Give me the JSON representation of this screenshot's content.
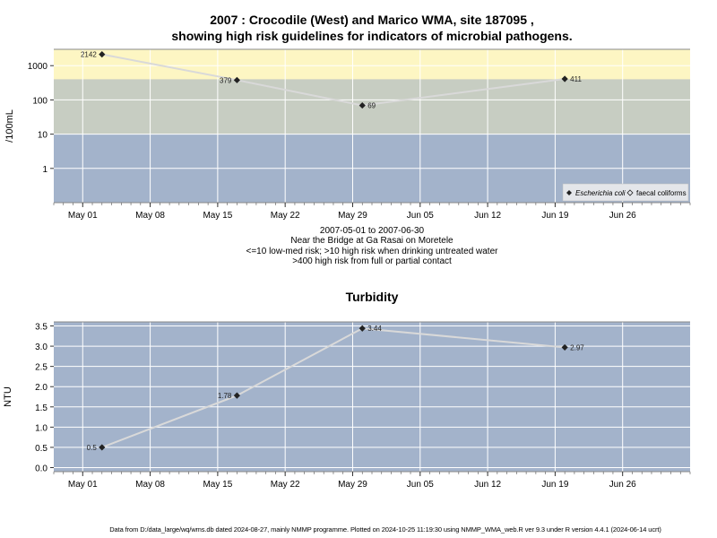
{
  "title_line1": "2007 : Crocodile (West) and Marico WMA, site 187095 ,",
  "title_line2": "showing high risk guidelines for indicators of microbial pathogens.",
  "caption": {
    "line1": "2007-05-01 to 2007-06-30",
    "line2": "Near the Bridge at Ga Rasai on Moretele",
    "line3": "<=10 low-med risk; >10 high risk when drinking untreated water",
    "line4": ">400 high risk from full or partial contact"
  },
  "footer": "Data from D:/data_large/wq/wms.db dated 2024-08-27, mainly NMMP programme. Plotted on 2024-10-25 11:19:30 using NMMP_WMA_web.R ver 9.3 under R version 4.4.1 (2024-06-14 ucrt)",
  "colors": {
    "panel_bg": "#a3b3cb",
    "band_high": "#fdf6c3",
    "band_mid": "#c7cdc2",
    "grid": "#ffffff",
    "line": "#d9d9d9",
    "point": "#222222"
  },
  "chart_data": [
    {
      "type": "line",
      "title": "",
      "ylabel": "/100mL",
      "xlabel": "",
      "x_tick_labels": [
        "May 01",
        "May 08",
        "May 15",
        "May 22",
        "May 29",
        "Jun 05",
        "Jun 12",
        "Jun 19",
        "Jun 26"
      ],
      "x_tick_dates": [
        "2007-05-01",
        "2007-05-08",
        "2007-05-15",
        "2007-05-22",
        "2007-05-29",
        "2007-06-05",
        "2007-06-12",
        "2007-06-19",
        "2007-06-26"
      ],
      "y_scale": "log",
      "y_tick_labels": [
        "1",
        "10",
        "100",
        "1000"
      ],
      "y_tick_values": [
        1,
        10,
        100,
        1000
      ],
      "ylim": [
        0.1,
        3000
      ],
      "bands": [
        {
          "from": 0.1,
          "to": 10,
          "color": "#a3b3cb"
        },
        {
          "from": 10,
          "to": 400,
          "color": "#c7cdc2"
        },
        {
          "from": 400,
          "to": 3000,
          "color": "#fdf6c3"
        }
      ],
      "series": [
        {
          "name": "Escherichia coli",
          "marker": "filled-diamond",
          "x": [
            "2007-05-03",
            "2007-05-17",
            "2007-05-30",
            "2007-06-20"
          ],
          "values": [
            2142,
            379,
            69,
            411
          ],
          "value_labels": [
            "2142",
            "379",
            "69",
            "411"
          ]
        }
      ],
      "legend": {
        "position": "bottom-right",
        "entries": [
          "Escherichia coli",
          "faecal coliforms"
        ]
      },
      "grid": true
    },
    {
      "type": "line",
      "title": "Turbidity",
      "ylabel": "NTU",
      "xlabel": "",
      "x_tick_labels": [
        "May 01",
        "May 08",
        "May 15",
        "May 22",
        "May 29",
        "Jun 05",
        "Jun 12",
        "Jun 19",
        "Jun 26"
      ],
      "x_tick_dates": [
        "2007-05-01",
        "2007-05-08",
        "2007-05-15",
        "2007-05-22",
        "2007-05-29",
        "2007-06-05",
        "2007-06-12",
        "2007-06-19",
        "2007-06-26"
      ],
      "y_tick_labels": [
        "0.0",
        "0.5",
        "1.0",
        "1.5",
        "2.0",
        "2.5",
        "3.0",
        "3.5"
      ],
      "y_tick_values": [
        0,
        0.5,
        1,
        1.5,
        2,
        2.5,
        3,
        3.5
      ],
      "ylim": [
        -0.1,
        3.6
      ],
      "series": [
        {
          "name": "",
          "marker": "filled-diamond",
          "x": [
            "2007-05-03",
            "2007-05-17",
            "2007-05-30",
            "2007-06-20"
          ],
          "values": [
            0.5,
            1.78,
            3.44,
            2.97
          ],
          "value_labels": [
            "0.5",
            "1.78",
            "3.44",
            "2.97"
          ]
        }
      ],
      "grid": true
    }
  ]
}
